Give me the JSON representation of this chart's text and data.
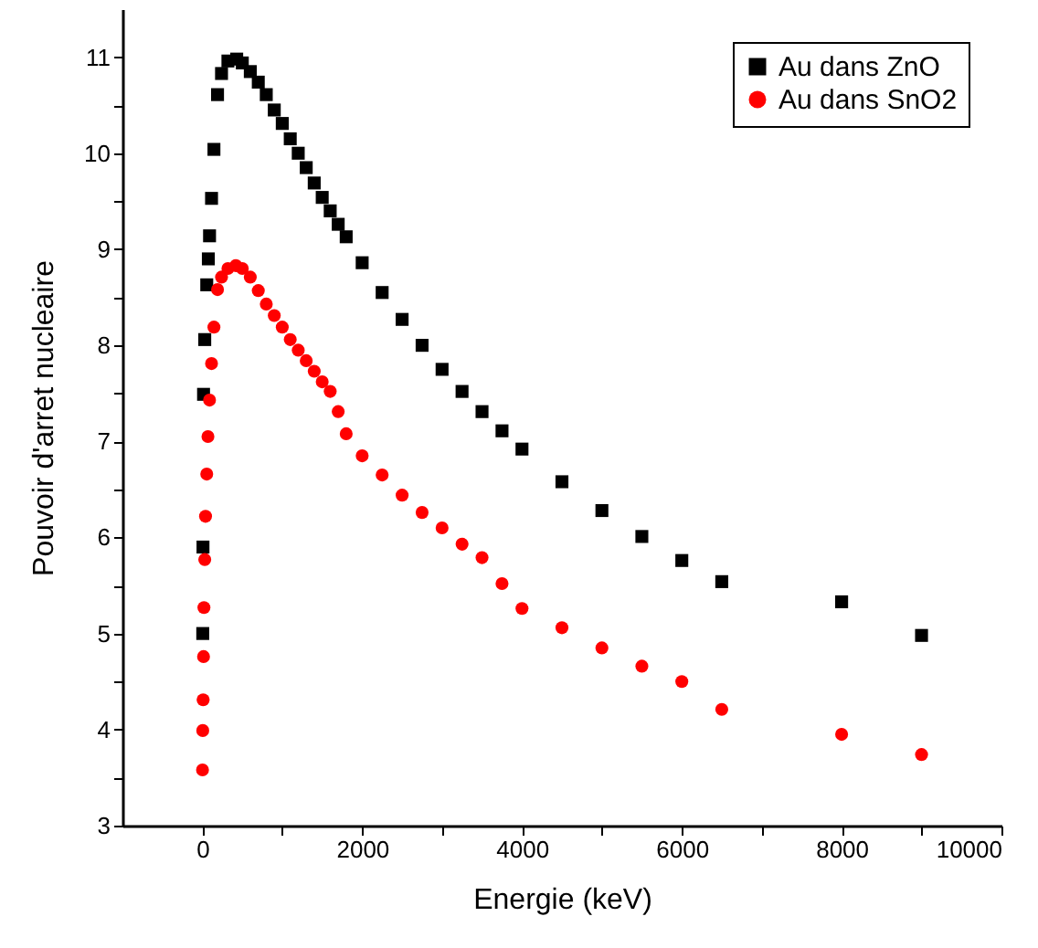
{
  "chart_data": {
    "type": "scatter",
    "xlabel": "Energie (keV)",
    "ylabel": "Pouvoir d'arret nucleaire",
    "xlim": [
      -1000,
      10000
    ],
    "ylim": [
      3,
      11.5
    ],
    "xticks": [
      0,
      {
        "value": 1000,
        "label": null
      },
      2000,
      {
        "value": 3000,
        "label": null
      },
      4000,
      {
        "value": 5000,
        "label": null
      },
      6000,
      {
        "value": 7000,
        "label": null
      },
      8000,
      {
        "value": 9000,
        "label": null
      },
      10000
    ],
    "yticks": [
      3,
      {
        "value": 3.5,
        "label": null
      },
      4,
      {
        "value": 4.5,
        "label": null
      },
      5,
      {
        "value": 5.5,
        "label": null
      },
      6,
      {
        "value": 6.5,
        "label": null
      },
      7,
      {
        "value": 7.5,
        "label": null
      },
      8,
      {
        "value": 8.5,
        "label": null
      },
      9,
      {
        "value": 9.5,
        "label": null
      },
      10,
      {
        "value": 10.5,
        "label": null
      },
      11
    ],
    "grid": false,
    "legend": "top right",
    "series": [
      {
        "name": "Au dans ZnO",
        "color": "#000000",
        "marker": "square",
        "x": [
          5,
          8,
          10,
          15,
          30,
          55,
          75,
          90,
          115,
          145,
          190,
          240,
          320,
          430,
          500,
          600,
          700,
          800,
          900,
          1000,
          1100,
          1200,
          1300,
          1400,
          1500,
          1600,
          1700,
          1800,
          2000,
          2250,
          2500,
          2750,
          3000,
          3250,
          3500,
          3750,
          4000,
          4500,
          5000,
          5500,
          6000,
          6500,
          8000,
          9000
        ],
        "values": [
          5.0,
          5.9,
          null,
          7.49,
          8.06,
          8.63,
          8.9,
          9.14,
          9.53,
          10.04,
          10.61,
          10.83,
          10.96,
          10.98,
          10.94,
          10.85,
          10.74,
          10.61,
          10.45,
          10.31,
          10.15,
          10.0,
          9.85,
          9.69,
          9.54,
          9.4,
          9.26,
          9.13,
          8.86,
          8.55,
          8.27,
          8.0,
          7.75,
          7.52,
          7.31,
          7.11,
          6.92,
          6.58,
          6.28,
          6.01,
          5.76,
          5.54,
          5.33,
          4.98
        ]
      },
      {
        "name": "Au dans SnO2",
        "color": "#ff0000",
        "marker": "circle",
        "x": [
          2,
          5,
          10,
          15,
          20,
          30,
          40,
          55,
          70,
          90,
          115,
          145,
          190,
          240,
          320,
          420,
          500,
          600,
          700,
          800,
          900,
          1000,
          1100,
          1200,
          1300,
          1400,
          1500,
          1600,
          1700,
          1800,
          2000,
          2250,
          2500,
          2750,
          3000,
          3250,
          3500,
          3750,
          4000,
          4500,
          5000,
          5500,
          6000,
          6500,
          8000,
          9000
        ],
        "values": [
          3.58,
          3.99,
          4.31,
          4.76,
          5.27,
          5.77,
          6.22,
          6.66,
          7.05,
          7.43,
          7.81,
          8.19,
          8.58,
          8.71,
          8.8,
          8.83,
          8.8,
          8.71,
          8.57,
          8.43,
          8.31,
          8.19,
          8.06,
          7.95,
          7.84,
          7.73,
          7.62,
          7.52,
          7.31,
          7.08,
          6.85,
          6.65,
          6.44,
          6.26,
          6.1,
          5.93,
          5.79,
          5.52,
          5.26,
          5.06,
          4.85,
          4.66,
          4.5,
          4.21,
          3.95,
          3.74
        ]
      }
    ]
  }
}
